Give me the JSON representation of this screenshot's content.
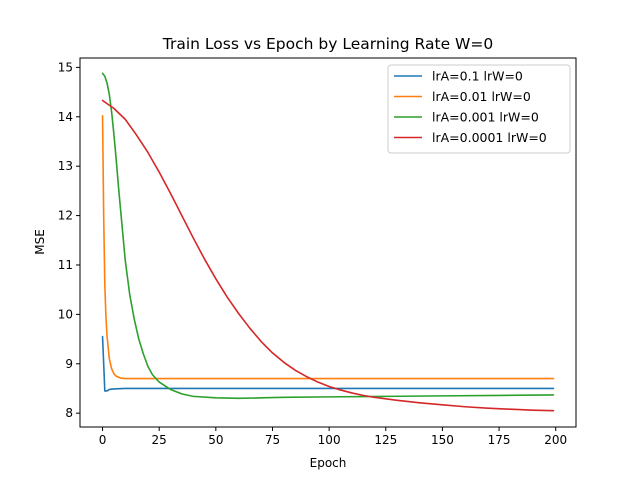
{
  "chart_data": {
    "type": "line",
    "title": "Train Loss vs Epoch by Learning Rate W=0",
    "xlabel": "Epoch",
    "ylabel": "MSE",
    "xlim": [
      -9.95,
      208.95
    ],
    "ylim": [
      7.72,
      15.19
    ],
    "xticks": [
      0,
      25,
      50,
      75,
      100,
      125,
      150,
      175,
      200
    ],
    "yticks": [
      8,
      9,
      10,
      11,
      12,
      13,
      14,
      15
    ],
    "grid": false,
    "legend_position": "upper right",
    "series": [
      {
        "name": "lrA=0.1 lrW=0",
        "color": "#1f77b4",
        "points": [
          [
            0,
            9.55
          ],
          [
            1,
            8.45
          ],
          [
            2,
            8.45
          ],
          [
            3,
            8.48
          ],
          [
            5,
            8.49
          ],
          [
            10,
            8.5
          ],
          [
            25,
            8.5
          ],
          [
            50,
            8.5
          ],
          [
            75,
            8.5
          ],
          [
            100,
            8.5
          ],
          [
            125,
            8.5
          ],
          [
            150,
            8.5
          ],
          [
            175,
            8.5
          ],
          [
            199,
            8.5
          ]
        ]
      },
      {
        "name": "lrA=0.01 lrW=0",
        "color": "#ff7f0e",
        "points": [
          [
            0,
            14.02
          ],
          [
            0.5,
            12.0
          ],
          [
            1,
            10.6
          ],
          [
            1.5,
            9.95
          ],
          [
            2,
            9.55
          ],
          [
            3,
            9.1
          ],
          [
            4,
            8.9
          ],
          [
            5,
            8.8
          ],
          [
            6,
            8.75
          ],
          [
            8,
            8.71
          ],
          [
            10,
            8.7
          ],
          [
            15,
            8.7
          ],
          [
            25,
            8.7
          ],
          [
            50,
            8.7
          ],
          [
            100,
            8.7
          ],
          [
            150,
            8.7
          ],
          [
            199,
            8.7
          ]
        ]
      },
      {
        "name": "lrA=0.001 lrW=0",
        "color": "#2ca02c",
        "points": [
          [
            0,
            14.88
          ],
          [
            1,
            14.82
          ],
          [
            2,
            14.68
          ],
          [
            3,
            14.45
          ],
          [
            4,
            14.1
          ],
          [
            5,
            13.65
          ],
          [
            6,
            13.15
          ],
          [
            7,
            12.6
          ],
          [
            8,
            12.1
          ],
          [
            9,
            11.6
          ],
          [
            10,
            11.1
          ],
          [
            12,
            10.4
          ],
          [
            14,
            9.9
          ],
          [
            16,
            9.5
          ],
          [
            18,
            9.2
          ],
          [
            20,
            8.95
          ],
          [
            22,
            8.78
          ],
          [
            25,
            8.63
          ],
          [
            30,
            8.48
          ],
          [
            35,
            8.39
          ],
          [
            40,
            8.34
          ],
          [
            50,
            8.31
          ],
          [
            60,
            8.3
          ],
          [
            70,
            8.31
          ],
          [
            80,
            8.32
          ],
          [
            100,
            8.33
          ],
          [
            125,
            8.34
          ],
          [
            150,
            8.35
          ],
          [
            175,
            8.36
          ],
          [
            199,
            8.37
          ]
        ]
      },
      {
        "name": "lrA=0.0001 lrW=0",
        "color": "#d62728",
        "points": [
          [
            0,
            14.33
          ],
          [
            5,
            14.17
          ],
          [
            10,
            13.95
          ],
          [
            15,
            13.63
          ],
          [
            20,
            13.28
          ],
          [
            25,
            12.88
          ],
          [
            30,
            12.45
          ],
          [
            35,
            12.0
          ],
          [
            40,
            11.55
          ],
          [
            45,
            11.12
          ],
          [
            50,
            10.72
          ],
          [
            55,
            10.35
          ],
          [
            60,
            10.02
          ],
          [
            65,
            9.72
          ],
          [
            70,
            9.45
          ],
          [
            75,
            9.22
          ],
          [
            80,
            9.03
          ],
          [
            85,
            8.87
          ],
          [
            90,
            8.74
          ],
          [
            95,
            8.63
          ],
          [
            100,
            8.54
          ],
          [
            105,
            8.47
          ],
          [
            110,
            8.41
          ],
          [
            115,
            8.36
          ],
          [
            120,
            8.32
          ],
          [
            130,
            8.26
          ],
          [
            140,
            8.21
          ],
          [
            150,
            8.17
          ],
          [
            160,
            8.13
          ],
          [
            170,
            8.1
          ],
          [
            180,
            8.08
          ],
          [
            190,
            8.06
          ],
          [
            199,
            8.05
          ]
        ]
      }
    ]
  }
}
